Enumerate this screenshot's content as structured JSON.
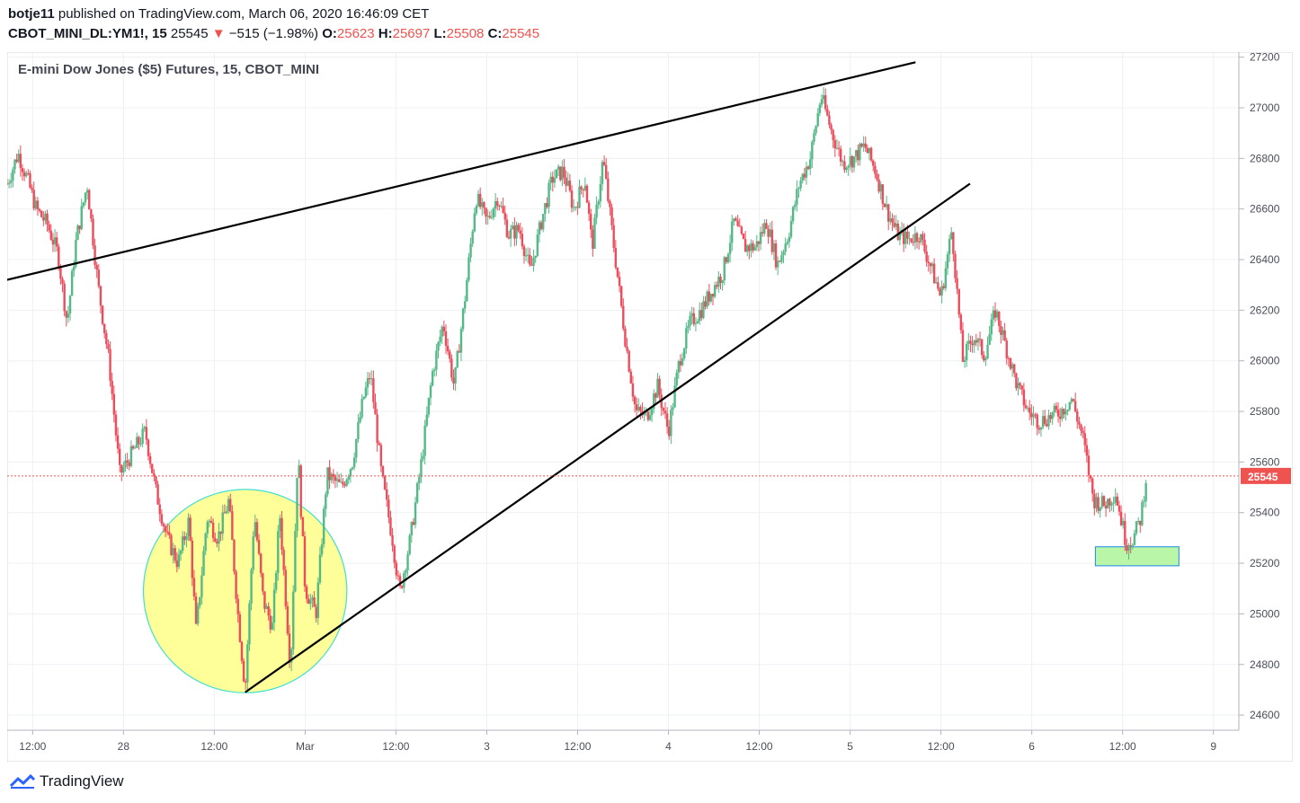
{
  "header": {
    "author": "botje11",
    "published_text": "published on TradingView.com, March 06, 2020 16:46:09 CET",
    "symbol": "CBOT_MINI_DL:YM1!, 15",
    "last": "25545",
    "change": "−515 (−1.98%)",
    "o_label": "O:",
    "o_value": "25623",
    "h_label": "H:",
    "h_value": "25697",
    "l_label": "L:",
    "l_value": "25508",
    "c_label": "C:",
    "c_value": "25545"
  },
  "chart_data": {
    "type": "candlestick",
    "title": "E-mini Dow Jones ($5) Futures, 15, CBOT_MINI",
    "y_ticks": [
      24600,
      24800,
      25000,
      25200,
      25400,
      25600,
      25800,
      26000,
      26200,
      26400,
      26600,
      26800,
      27000,
      27200
    ],
    "ylim": [
      24540,
      27220
    ],
    "x_ticks": [
      {
        "label": "12:00",
        "t": 0.0
      },
      {
        "label": "28",
        "t": 0.5
      },
      {
        "label": "12:00",
        "t": 1.0
      },
      {
        "label": "Mar",
        "t": 1.5
      },
      {
        "label": "12:00",
        "t": 2.0
      },
      {
        "label": "3",
        "t": 2.5
      },
      {
        "label": "12:00",
        "t": 3.0
      },
      {
        "label": "4",
        "t": 3.5
      },
      {
        "label": "12:00",
        "t": 4.0
      },
      {
        "label": "5",
        "t": 4.5
      },
      {
        "label": "12:00",
        "t": 5.0
      },
      {
        "label": "6",
        "t": 5.5
      },
      {
        "label": "12:00",
        "t": 6.0
      },
      {
        "label": "9",
        "t": 6.5
      }
    ],
    "xlim": [
      -0.14,
      6.64
    ],
    "last_price": 25545,
    "last_price_label": "25545",
    "path_points": [
      [
        -0.14,
        26700
      ],
      [
        -0.08,
        26820
      ],
      [
        -0.03,
        26720
      ],
      [
        0.02,
        26600
      ],
      [
        0.08,
        26540
      ],
      [
        0.14,
        26420
      ],
      [
        0.19,
        26150
      ],
      [
        0.24,
        26480
      ],
      [
        0.3,
        26700
      ],
      [
        0.36,
        26300
      ],
      [
        0.42,
        26000
      ],
      [
        0.48,
        25550
      ],
      [
        0.56,
        25650
      ],
      [
        0.62,
        25720
      ],
      [
        0.68,
        25480
      ],
      [
        0.74,
        25300
      ],
      [
        0.8,
        25200
      ],
      [
        0.86,
        25370
      ],
      [
        0.9,
        24930
      ],
      [
        0.96,
        25380
      ],
      [
        1.02,
        25300
      ],
      [
        1.08,
        25450
      ],
      [
        1.13,
        25000
      ],
      [
        1.17,
        24700
      ],
      [
        1.22,
        25400
      ],
      [
        1.27,
        25050
      ],
      [
        1.32,
        24950
      ],
      [
        1.36,
        25400
      ],
      [
        1.42,
        24780
      ],
      [
        1.46,
        25650
      ],
      [
        1.5,
        25100
      ],
      [
        1.56,
        25000
      ],
      [
        1.62,
        25550
      ],
      [
        1.7,
        25500
      ],
      [
        1.76,
        25600
      ],
      [
        1.82,
        25850
      ],
      [
        1.86,
        25950
      ],
      [
        1.92,
        25550
      ],
      [
        1.98,
        25300
      ],
      [
        2.02,
        25080
      ],
      [
        2.08,
        25300
      ],
      [
        2.14,
        25600
      ],
      [
        2.2,
        25950
      ],
      [
        2.26,
        26150
      ],
      [
        2.32,
        25900
      ],
      [
        2.38,
        26250
      ],
      [
        2.44,
        26650
      ],
      [
        2.5,
        26550
      ],
      [
        2.56,
        26650
      ],
      [
        2.62,
        26500
      ],
      [
        2.68,
        26520
      ],
      [
        2.74,
        26350
      ],
      [
        2.8,
        26550
      ],
      [
        2.86,
        26720
      ],
      [
        2.92,
        26750
      ],
      [
        2.98,
        26600
      ],
      [
        3.04,
        26720
      ],
      [
        3.08,
        26450
      ],
      [
        3.14,
        26800
      ],
      [
        3.2,
        26450
      ],
      [
        3.26,
        26100
      ],
      [
        3.32,
        25800
      ],
      [
        3.38,
        25780
      ],
      [
        3.44,
        25900
      ],
      [
        3.5,
        25720
      ],
      [
        3.56,
        26000
      ],
      [
        3.62,
        26150
      ],
      [
        3.68,
        26200
      ],
      [
        3.74,
        26280
      ],
      [
        3.8,
        26350
      ],
      [
        3.86,
        26550
      ],
      [
        3.92,
        26450
      ],
      [
        3.98,
        26450
      ],
      [
        4.04,
        26550
      ],
      [
        4.1,
        26380
      ],
      [
        4.16,
        26500
      ],
      [
        4.22,
        26700
      ],
      [
        4.28,
        26800
      ],
      [
        4.34,
        27050
      ],
      [
        4.4,
        26900
      ],
      [
        4.46,
        26780
      ],
      [
        4.52,
        26800
      ],
      [
        4.58,
        26850
      ],
      [
        4.64,
        26750
      ],
      [
        4.7,
        26600
      ],
      [
        4.76,
        26500
      ],
      [
        4.82,
        26480
      ],
      [
        4.88,
        26500
      ],
      [
        4.94,
        26380
      ],
      [
        5.0,
        26250
      ],
      [
        5.06,
        26520
      ],
      [
        5.12,
        26000
      ],
      [
        5.18,
        26100
      ],
      [
        5.24,
        26020
      ],
      [
        5.3,
        26200
      ],
      [
        5.36,
        26050
      ],
      [
        5.42,
        25900
      ],
      [
        5.48,
        25800
      ],
      [
        5.54,
        25760
      ],
      [
        5.6,
        25780
      ],
      [
        5.66,
        25800
      ],
      [
        5.72,
        25850
      ],
      [
        5.78,
        25700
      ],
      [
        5.84,
        25450
      ],
      [
        5.9,
        25430
      ],
      [
        5.96,
        25480
      ],
      [
        6.02,
        25280
      ],
      [
        6.06,
        25300
      ],
      [
        6.1,
        25380
      ],
      [
        6.13,
        25545
      ]
    ],
    "trendlines": [
      {
        "name": "upper-trendline",
        "from": [
          -0.14,
          26320
        ],
        "to": [
          4.86,
          27180
        ]
      },
      {
        "name": "lower-trendline",
        "from": [
          1.17,
          24690
        ],
        "to": [
          5.16,
          26700
        ]
      }
    ],
    "annotations": [
      {
        "name": "highlight-circle",
        "type": "circle",
        "center": [
          1.17,
          25090
        ],
        "radius_t": 0.56,
        "color": "#ffff99",
        "stroke": "#40e0d0"
      },
      {
        "name": "support-box",
        "type": "rect",
        "from": [
          5.85,
          25265
        ],
        "to": [
          6.31,
          25190
        ],
        "color": "#b9f6a8",
        "stroke": "#1e88e5"
      }
    ],
    "colors": {
      "up": "#53b987",
      "down": "#eb4d5c",
      "line": "#000000",
      "grid": "#eef0f3",
      "price_line": "#ef5350"
    }
  },
  "footer": {
    "brand": "TradingView"
  }
}
